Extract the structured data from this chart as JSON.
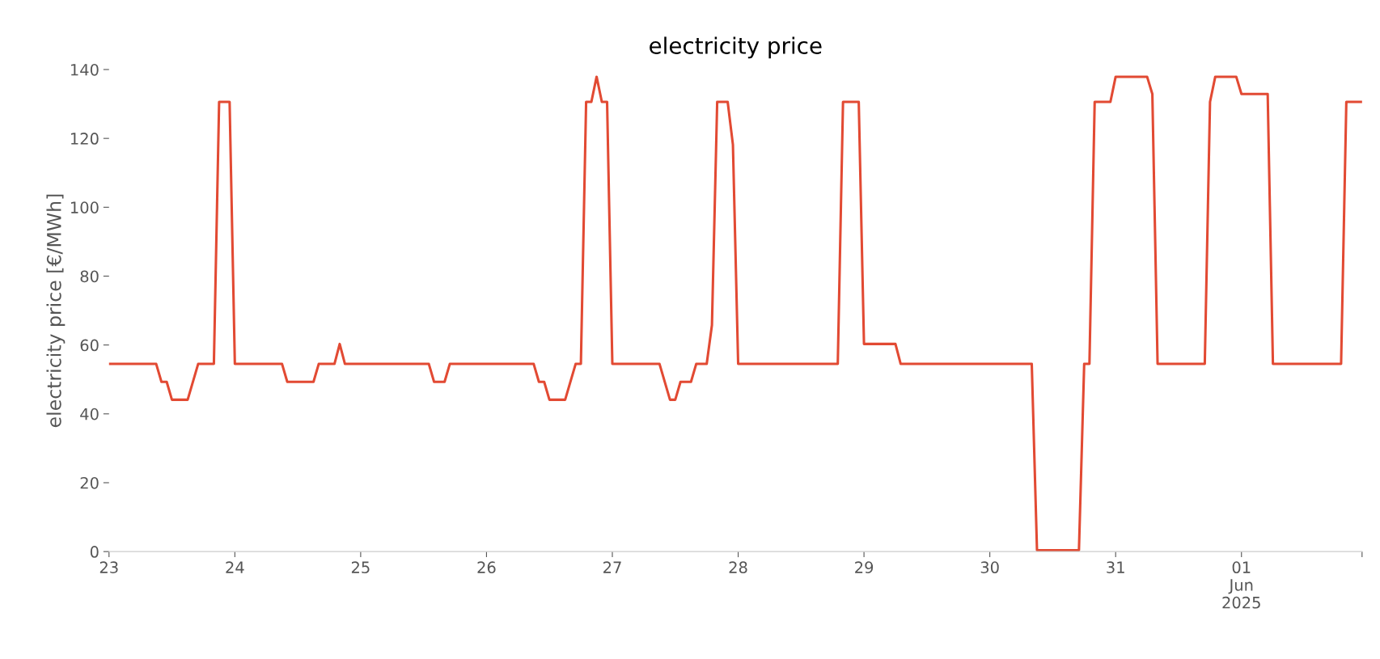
{
  "chart_data": {
    "type": "line",
    "title": "electricity price",
    "ylabel": "electricity price [€/MWh]",
    "series": [
      {
        "color": "#e24a33",
        "x": [
          "2025-05-23T00:00",
          "2025-05-23T09:00",
          "2025-05-23T10:00",
          "2025-05-23T11:00",
          "2025-05-23T12:00",
          "2025-05-23T15:00",
          "2025-05-23T17:00",
          "2025-05-23T20:00",
          "2025-05-23T21:00",
          "2025-05-23T23:00",
          "2025-05-24T00:00",
          "2025-05-24T09:00",
          "2025-05-24T10:00",
          "2025-05-24T15:00",
          "2025-05-24T16:00",
          "2025-05-24T19:00",
          "2025-05-24T20:00",
          "2025-05-24T21:00",
          "2025-05-25T13:00",
          "2025-05-25T14:00",
          "2025-05-25T16:00",
          "2025-05-25T17:00",
          "2025-05-26T09:00",
          "2025-05-26T10:00",
          "2025-05-26T11:00",
          "2025-05-26T12:00",
          "2025-05-26T15:00",
          "2025-05-26T17:00",
          "2025-05-26T18:00",
          "2025-05-26T19:00",
          "2025-05-26T20:00",
          "2025-05-26T21:00",
          "2025-05-26T22:00",
          "2025-05-26T23:00",
          "2025-05-27T00:00",
          "2025-05-27T09:00",
          "2025-05-27T11:00",
          "2025-05-27T12:00",
          "2025-05-27T13:00",
          "2025-05-27T15:00",
          "2025-05-27T16:00",
          "2025-05-27T18:00",
          "2025-05-27T19:00",
          "2025-05-27T20:00",
          "2025-05-27T22:00",
          "2025-05-27T23:00",
          "2025-05-28T00:00",
          "2025-05-28T19:00",
          "2025-05-28T20:00",
          "2025-05-28T23:00",
          "2025-05-29T00:00",
          "2025-05-29T06:00",
          "2025-05-29T07:00",
          "2025-05-30T08:00",
          "2025-05-30T09:00",
          "2025-05-30T17:00",
          "2025-05-30T18:00",
          "2025-05-30T19:00",
          "2025-05-30T20:00",
          "2025-05-30T23:00",
          "2025-05-31T00:00",
          "2025-05-31T06:00",
          "2025-05-31T07:00",
          "2025-05-31T08:00",
          "2025-05-31T17:00",
          "2025-05-31T18:00",
          "2025-05-31T19:00",
          "2025-05-31T23:00",
          "2025-06-01T00:00",
          "2025-06-01T05:00",
          "2025-06-01T06:00",
          "2025-06-01T19:00",
          "2025-06-01T20:00",
          "2025-06-01T23:00"
        ],
        "values": [
          54.5,
          54.5,
          49.3,
          49.3,
          44.1,
          44.1,
          54.5,
          54.5,
          130.6,
          130.6,
          54.5,
          54.5,
          49.3,
          49.3,
          54.5,
          54.5,
          60.3,
          54.5,
          54.5,
          49.3,
          49.3,
          54.5,
          54.5,
          49.3,
          49.3,
          44.1,
          44.1,
          54.5,
          54.5,
          130.6,
          130.6,
          137.9,
          130.6,
          130.6,
          54.5,
          54.5,
          44.1,
          44.1,
          49.3,
          49.3,
          54.5,
          54.5,
          65.8,
          130.6,
          130.6,
          118.2,
          54.5,
          54.5,
          130.6,
          130.6,
          60.3,
          60.3,
          54.5,
          54.5,
          0.4,
          0.4,
          54.5,
          54.5,
          130.6,
          130.6,
          137.9,
          137.9,
          132.9,
          54.5,
          54.5,
          130.6,
          137.9,
          137.9,
          132.9,
          132.9,
          54.5,
          54.5,
          130.6,
          130.6
        ]
      }
    ],
    "xticks": [
      {
        "value": "2025-05-23",
        "label": "23"
      },
      {
        "value": "2025-05-24",
        "label": "24"
      },
      {
        "value": "2025-05-25",
        "label": "25"
      },
      {
        "value": "2025-05-26",
        "label": "26"
      },
      {
        "value": "2025-05-27",
        "label": "27"
      },
      {
        "value": "2025-05-28",
        "label": "28"
      },
      {
        "value": "2025-05-29",
        "label": "29"
      },
      {
        "value": "2025-05-30",
        "label": "30"
      },
      {
        "value": "2025-05-31",
        "label": "31"
      },
      {
        "value": "2025-06-01",
        "label": "01\nJun\n2025"
      },
      {
        "value": "2025-06-01T23:00",
        "label": null
      }
    ],
    "xlim": [
      "2025-05-23T00:00",
      "2025-06-01T23:00"
    ],
    "ylim": [
      0,
      140
    ],
    "yticks": [
      0,
      20,
      40,
      60,
      80,
      100,
      120,
      140
    ],
    "grid": false,
    "marker": "none",
    "line_style": "solid"
  }
}
